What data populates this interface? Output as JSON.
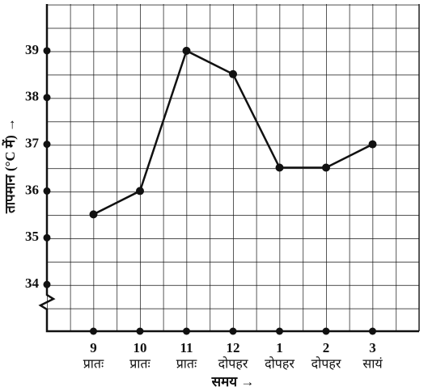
{
  "chart_data": {
    "type": "line",
    "y_label": "तापमान (°C में) →",
    "x_label": "समय →",
    "categories": [
      "9",
      "10",
      "11",
      "12",
      "1",
      "2",
      "3"
    ],
    "category_periods": [
      "प्रातः",
      "प्रातः",
      "प्रातः",
      "दोपहर",
      "दोपहर",
      "दोपहर",
      "सायं"
    ],
    "values": [
      35.5,
      36,
      39,
      38.5,
      36.5,
      36.5,
      37
    ],
    "color": "#111111",
    "ylim": [
      33,
      40
    ],
    "yticks": [
      34,
      35,
      36,
      37,
      38,
      39
    ],
    "grid": true
  }
}
